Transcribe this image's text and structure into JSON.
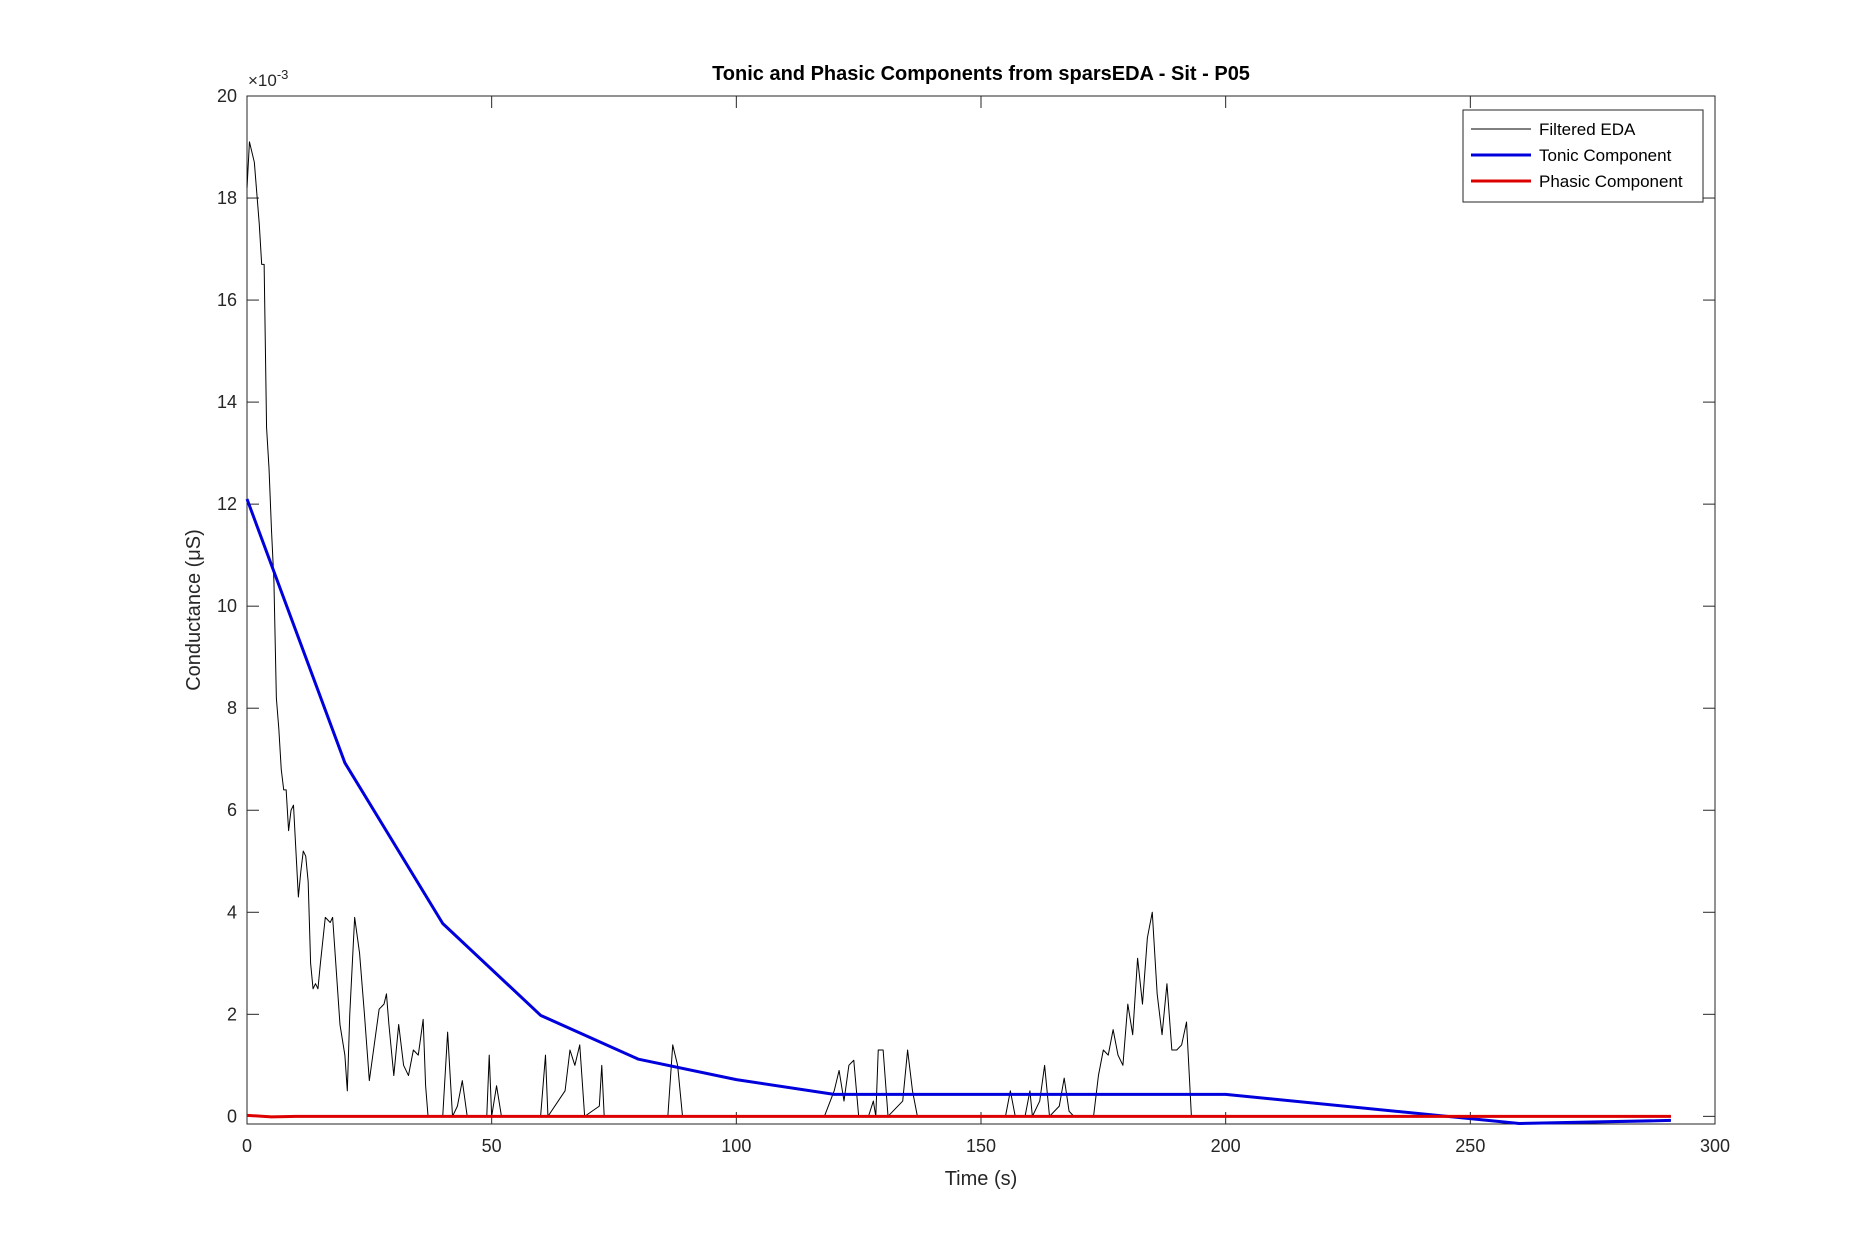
{
  "chart_data": {
    "type": "line",
    "title": "Tonic and Phasic Components from sparsEDA - Sit - P05",
    "x_label": "Time (s)",
    "y_label": "Conductance (μS)",
    "y_exponent": {
      "base": "×10",
      "power": "-3"
    },
    "xlim": [
      0,
      300
    ],
    "ylim": [
      -0.15,
      20
    ],
    "xticks": [
      0,
      50,
      100,
      150,
      200,
      250,
      300
    ],
    "yticks": [
      0,
      2,
      4,
      6,
      8,
      10,
      12,
      14,
      16,
      18,
      20
    ],
    "legend": "top-right",
    "series": [
      {
        "name": "Filtered EDA",
        "color": "#000000",
        "width": 1,
        "x": [
          0,
          0.5,
          1.5,
          2.5,
          3,
          3.5,
          4,
          4.5,
          5,
          5.5,
          6,
          6.5,
          7,
          7.5,
          8,
          8.5,
          9,
          9.5,
          10,
          10.5,
          11,
          11.5,
          12,
          12.5,
          13,
          13.5,
          14,
          14.5,
          15,
          16,
          17,
          17.5,
          18,
          19,
          20,
          20.5,
          21,
          22,
          23,
          24,
          25,
          26,
          27,
          28,
          28.5,
          29,
          30,
          31,
          32,
          33,
          34,
          35,
          36,
          36.5,
          37,
          38,
          40,
          41,
          42,
          43,
          44,
          45,
          49,
          49.5,
          50,
          51,
          52,
          60,
          61,
          61.5,
          65,
          66,
          67,
          68,
          69,
          72,
          72.5,
          73,
          86,
          87,
          88,
          89,
          118,
          120,
          121,
          122,
          123,
          124,
          125,
          127,
          128,
          128.5,
          129,
          130,
          131,
          134,
          135,
          136,
          137,
          155,
          156,
          157,
          159,
          160,
          160.5,
          162,
          163,
          164,
          166,
          167,
          168,
          169,
          173,
          174,
          175,
          176,
          177,
          178,
          179,
          180,
          181,
          182,
          183,
          184,
          185,
          186,
          187,
          188,
          189,
          190,
          191,
          192,
          193,
          291
        ],
        "values": [
          18.2,
          19.1,
          18.7,
          17.5,
          16.7,
          16.7,
          13.5,
          12.7,
          11.5,
          10.5,
          8.2,
          7.6,
          6.8,
          6.4,
          6.4,
          5.6,
          6.0,
          6.1,
          5.2,
          4.3,
          4.8,
          5.2,
          5.1,
          4.6,
          3.0,
          2.5,
          2.6,
          2.5,
          3.0,
          3.9,
          3.8,
          3.9,
          3.2,
          1.8,
          1.2,
          0.5,
          2.0,
          3.9,
          3.2,
          2.0,
          0.7,
          1.4,
          2.1,
          2.2,
          2.4,
          1.8,
          0.8,
          1.8,
          1.0,
          0.8,
          1.3,
          1.2,
          1.9,
          0.6,
          0,
          0,
          0,
          1.65,
          0,
          0.2,
          0.7,
          0,
          0,
          1.2,
          0,
          0.6,
          0,
          0,
          1.2,
          0,
          0.5,
          1.3,
          1.0,
          1.4,
          0,
          0.2,
          1.0,
          0,
          0,
          1.4,
          1.0,
          0,
          0,
          0.5,
          0.9,
          0.3,
          1.0,
          1.1,
          0,
          0,
          0.3,
          0,
          1.3,
          1.3,
          0,
          0.3,
          1.3,
          0.5,
          0,
          0,
          0.5,
          0,
          0,
          0.5,
          0,
          0.3,
          1.0,
          0,
          0.2,
          0.75,
          0.1,
          0,
          0,
          0.8,
          1.3,
          1.2,
          1.7,
          1.2,
          1.0,
          2.2,
          1.6,
          3.1,
          2.2,
          3.5,
          4.0,
          2.4,
          1.6,
          2.6,
          1.3,
          1.3,
          1.4,
          1.85,
          0,
          0
        ]
      },
      {
        "name": "Tonic Component",
        "color": "#0000dd",
        "width": 3,
        "x": [
          0,
          20,
          40,
          60,
          80,
          100,
          120,
          200,
          260,
          291
        ],
        "values": [
          12.1,
          6.93,
          3.78,
          1.98,
          1.12,
          0.72,
          0.43,
          0.43,
          -0.14,
          -0.08
        ]
      },
      {
        "name": "Phasic Component",
        "color": "#dd0000",
        "width": 3,
        "x": [
          0,
          5,
          10,
          291
        ],
        "values": [
          0.02,
          -0.01,
          0,
          0
        ]
      }
    ]
  }
}
